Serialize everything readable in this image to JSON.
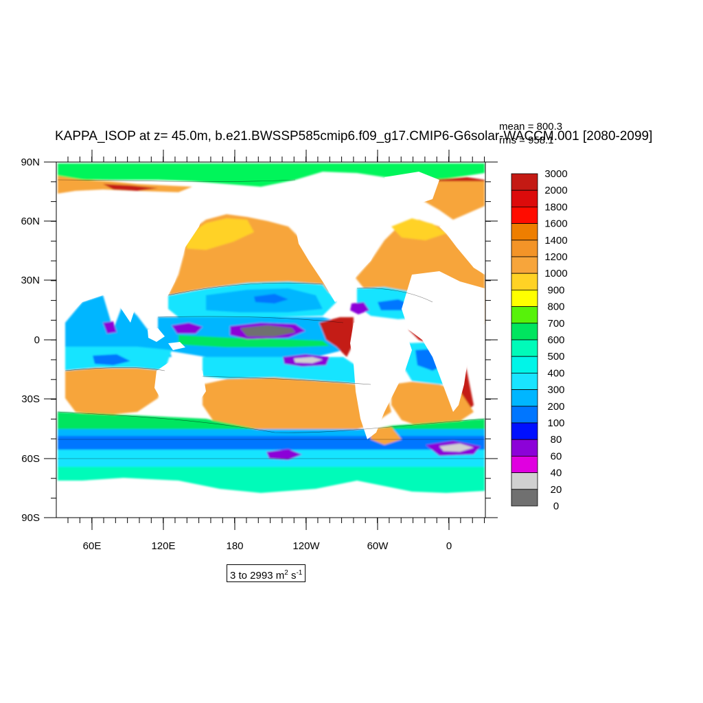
{
  "title": "KAPPA_ISOP at z=  45.0m, b.e21.BWSSP585cmip6.f09_g17.CMIP6-G6solar-WACCM.001 [2080-2099]",
  "stats": {
    "mean": "mean = 800.3",
    "rms": "rms = 958.1"
  },
  "range": {
    "text": "3 to 2993 m",
    "unit_sup": "2",
    "s": " s",
    "s_sup": "-1"
  },
  "map": {
    "lon_labels": [
      "60E",
      "120E",
      "180",
      "120W",
      "60W",
      "0"
    ],
    "lat_labels": [
      "90N",
      "60N",
      "30N",
      "0",
      "30S",
      "60S",
      "90S"
    ],
    "land_color": "#ffffff"
  },
  "colorbar": {
    "labels": [
      "3000",
      "2000",
      "1800",
      "1600",
      "1400",
      "1200",
      "1000",
      "900",
      "800",
      "700",
      "600",
      "500",
      "400",
      "300",
      "200",
      "100",
      "80",
      "60",
      "40",
      "20",
      "0"
    ],
    "colors": [
      "#c41a14",
      "#dc0b0b",
      "#ff0c00",
      "#ee7e00",
      "#f39428",
      "#f7a53b",
      "#ffd225",
      "#ffff00",
      "#57f20a",
      "#00e55f",
      "#00fbb9",
      "#00f5e8",
      "#19e4ff",
      "#00b6ff",
      "#0076ff",
      "#0010ff",
      "#8c02d8",
      "#e000e0",
      "#d0d0d0",
      "#707070"
    ]
  },
  "chart_data": {
    "type": "heatmap",
    "variable": "KAPPA_ISOP",
    "x_ticks": [
      "60E",
      "120E",
      "180",
      "120W",
      "60W",
      "0"
    ],
    "y_ticks": [
      "90N",
      "60N",
      "30N",
      "0",
      "30S",
      "60S",
      "90S"
    ],
    "color_levels": [
      0,
      20,
      40,
      60,
      80,
      100,
      200,
      300,
      400,
      500,
      600,
      700,
      800,
      900,
      1000,
      1200,
      1400,
      1600,
      1800,
      2000,
      3000
    ],
    "mean": 800.3,
    "rms": 958.1,
    "min": 3,
    "max": 2993
  }
}
